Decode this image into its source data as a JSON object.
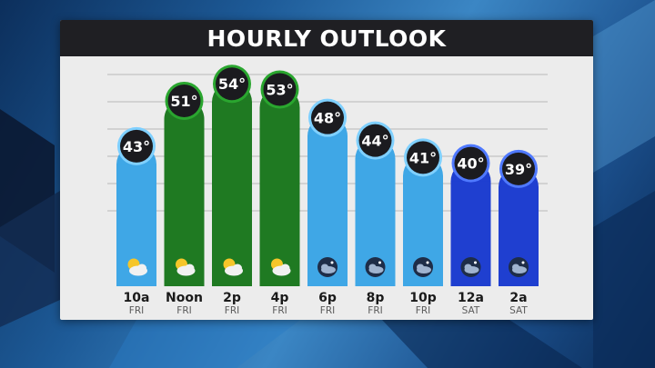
{
  "title": "HOURLY OUTLOOK",
  "colors": {
    "warm_bar": "#1f7a22",
    "warm_bar_rim": "#2aa62f",
    "day_bar": "#3fa7e6",
    "night_bar": "#2b63d9",
    "late_bar": "#1f3fd0",
    "badge": "#1b1b1f"
  },
  "chart_data": {
    "type": "bar",
    "categories": [
      "10a",
      "Noon",
      "2p",
      "4p",
      "6p",
      "8p",
      "10p",
      "12a",
      "2a"
    ],
    "days": [
      "FRI",
      "FRI",
      "FRI",
      "FRI",
      "FRI",
      "FRI",
      "FRI",
      "SAT",
      "SAT"
    ],
    "series": [
      {
        "values": [
          43,
          51,
          54,
          53,
          48,
          44,
          41,
          40,
          39
        ]
      }
    ],
    "value_labels": [
      "43°",
      "51°",
      "54°",
      "53°",
      "48°",
      "44°",
      "41°",
      "40°",
      "39°"
    ],
    "bar_styles": [
      "day",
      "warm",
      "warm",
      "warm",
      "day",
      "day",
      "day",
      "late",
      "late"
    ],
    "icons": [
      "sun-cloud-icon",
      "sun-cloud-icon",
      "sun-cloud-icon",
      "sun-cloud-icon",
      "moon-cloud-icon",
      "moon-cloud-icon",
      "moon-cloud-icon",
      "moon-cloud-icon",
      "moon-cloud-icon"
    ],
    "ylim": [
      30,
      55
    ],
    "grid": true
  }
}
